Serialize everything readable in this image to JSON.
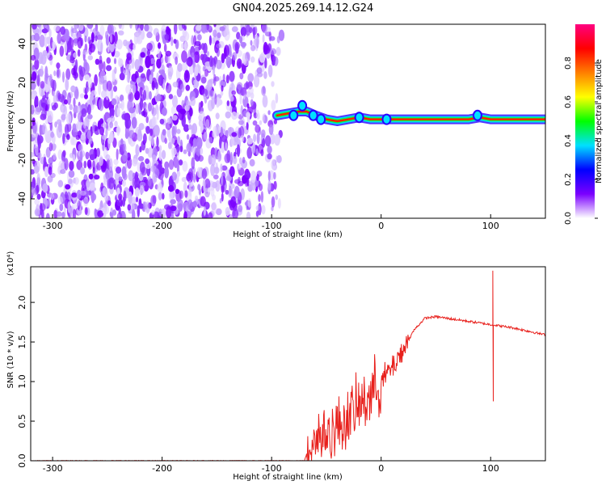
{
  "title": "GN04.2025.269.14.12.G24",
  "chart_data": [
    {
      "type": "heatmap",
      "name": "spectrogram",
      "xlabel": "Height of straight line (km)",
      "ylabel": "Frequency (Hz)",
      "xlim": [
        -320,
        150
      ],
      "ylim": [
        -50,
        50
      ],
      "xticks": [
        -300,
        -200,
        -100,
        0,
        100
      ],
      "yticks": [
        -40,
        -20,
        0,
        20,
        40
      ],
      "noise_region": [
        -320,
        -90
      ],
      "signal_trace": {
        "x": [
          -95,
          -85,
          -75,
          -68,
          -60,
          -50,
          -40,
          -30,
          -20,
          -10,
          0,
          10,
          20,
          40,
          60,
          80,
          90,
          100,
          120,
          150
        ],
        "freq_hz": [
          3,
          4,
          5,
          5,
          3,
          1,
          0,
          1,
          2,
          1,
          1,
          1,
          1,
          1,
          1,
          1,
          2,
          1,
          1,
          1
        ]
      },
      "colorbar": {
        "label": "Normalized spectral amplitude",
        "range": [
          0,
          1
        ],
        "ticks": [
          "0.0",
          "0.2",
          "0.4",
          "0.6",
          "0.8"
        ],
        "colors": [
          "#ffffff",
          "#7b00ff",
          "#0000ff",
          "#00e0ff",
          "#00ff00",
          "#ffff00",
          "#ff7f00",
          "#ff0000",
          "#ff0080"
        ]
      }
    },
    {
      "type": "line",
      "name": "snr",
      "xlabel": "Height of straight line (km)",
      "ylabel": "SNR (10 * v/v)",
      "scale_label": "(x10⁴)",
      "xlim": [
        -320,
        150
      ],
      "ylim": [
        0,
        2.45
      ],
      "xticks": [
        -300,
        -200,
        -100,
        0,
        100
      ],
      "yticks": [
        "0.0",
        "0.5",
        "1.0",
        "1.5",
        "2.0"
      ],
      "color": "#e8201c",
      "series": {
        "x": [
          -320,
          -100,
          -70,
          -65,
          -60,
          -50,
          -40,
          -30,
          -20,
          -10,
          0,
          10,
          20,
          30,
          40,
          50,
          60,
          70,
          80,
          90,
          100,
          110,
          120,
          130,
          140,
          150
        ],
        "y": [
          0.0,
          0.0,
          0.0,
          0.22,
          0.3,
          0.33,
          0.42,
          0.55,
          0.68,
          0.85,
          1.0,
          1.18,
          1.4,
          1.65,
          1.8,
          1.82,
          1.8,
          1.78,
          1.76,
          1.74,
          1.72,
          1.7,
          1.68,
          1.65,
          1.62,
          1.59
        ]
      },
      "annotations": [
        {
          "x": 102,
          "y": 2.4,
          "note": "spike"
        },
        {
          "x": 102,
          "y": 0.75,
          "note": "dip"
        }
      ]
    }
  ]
}
